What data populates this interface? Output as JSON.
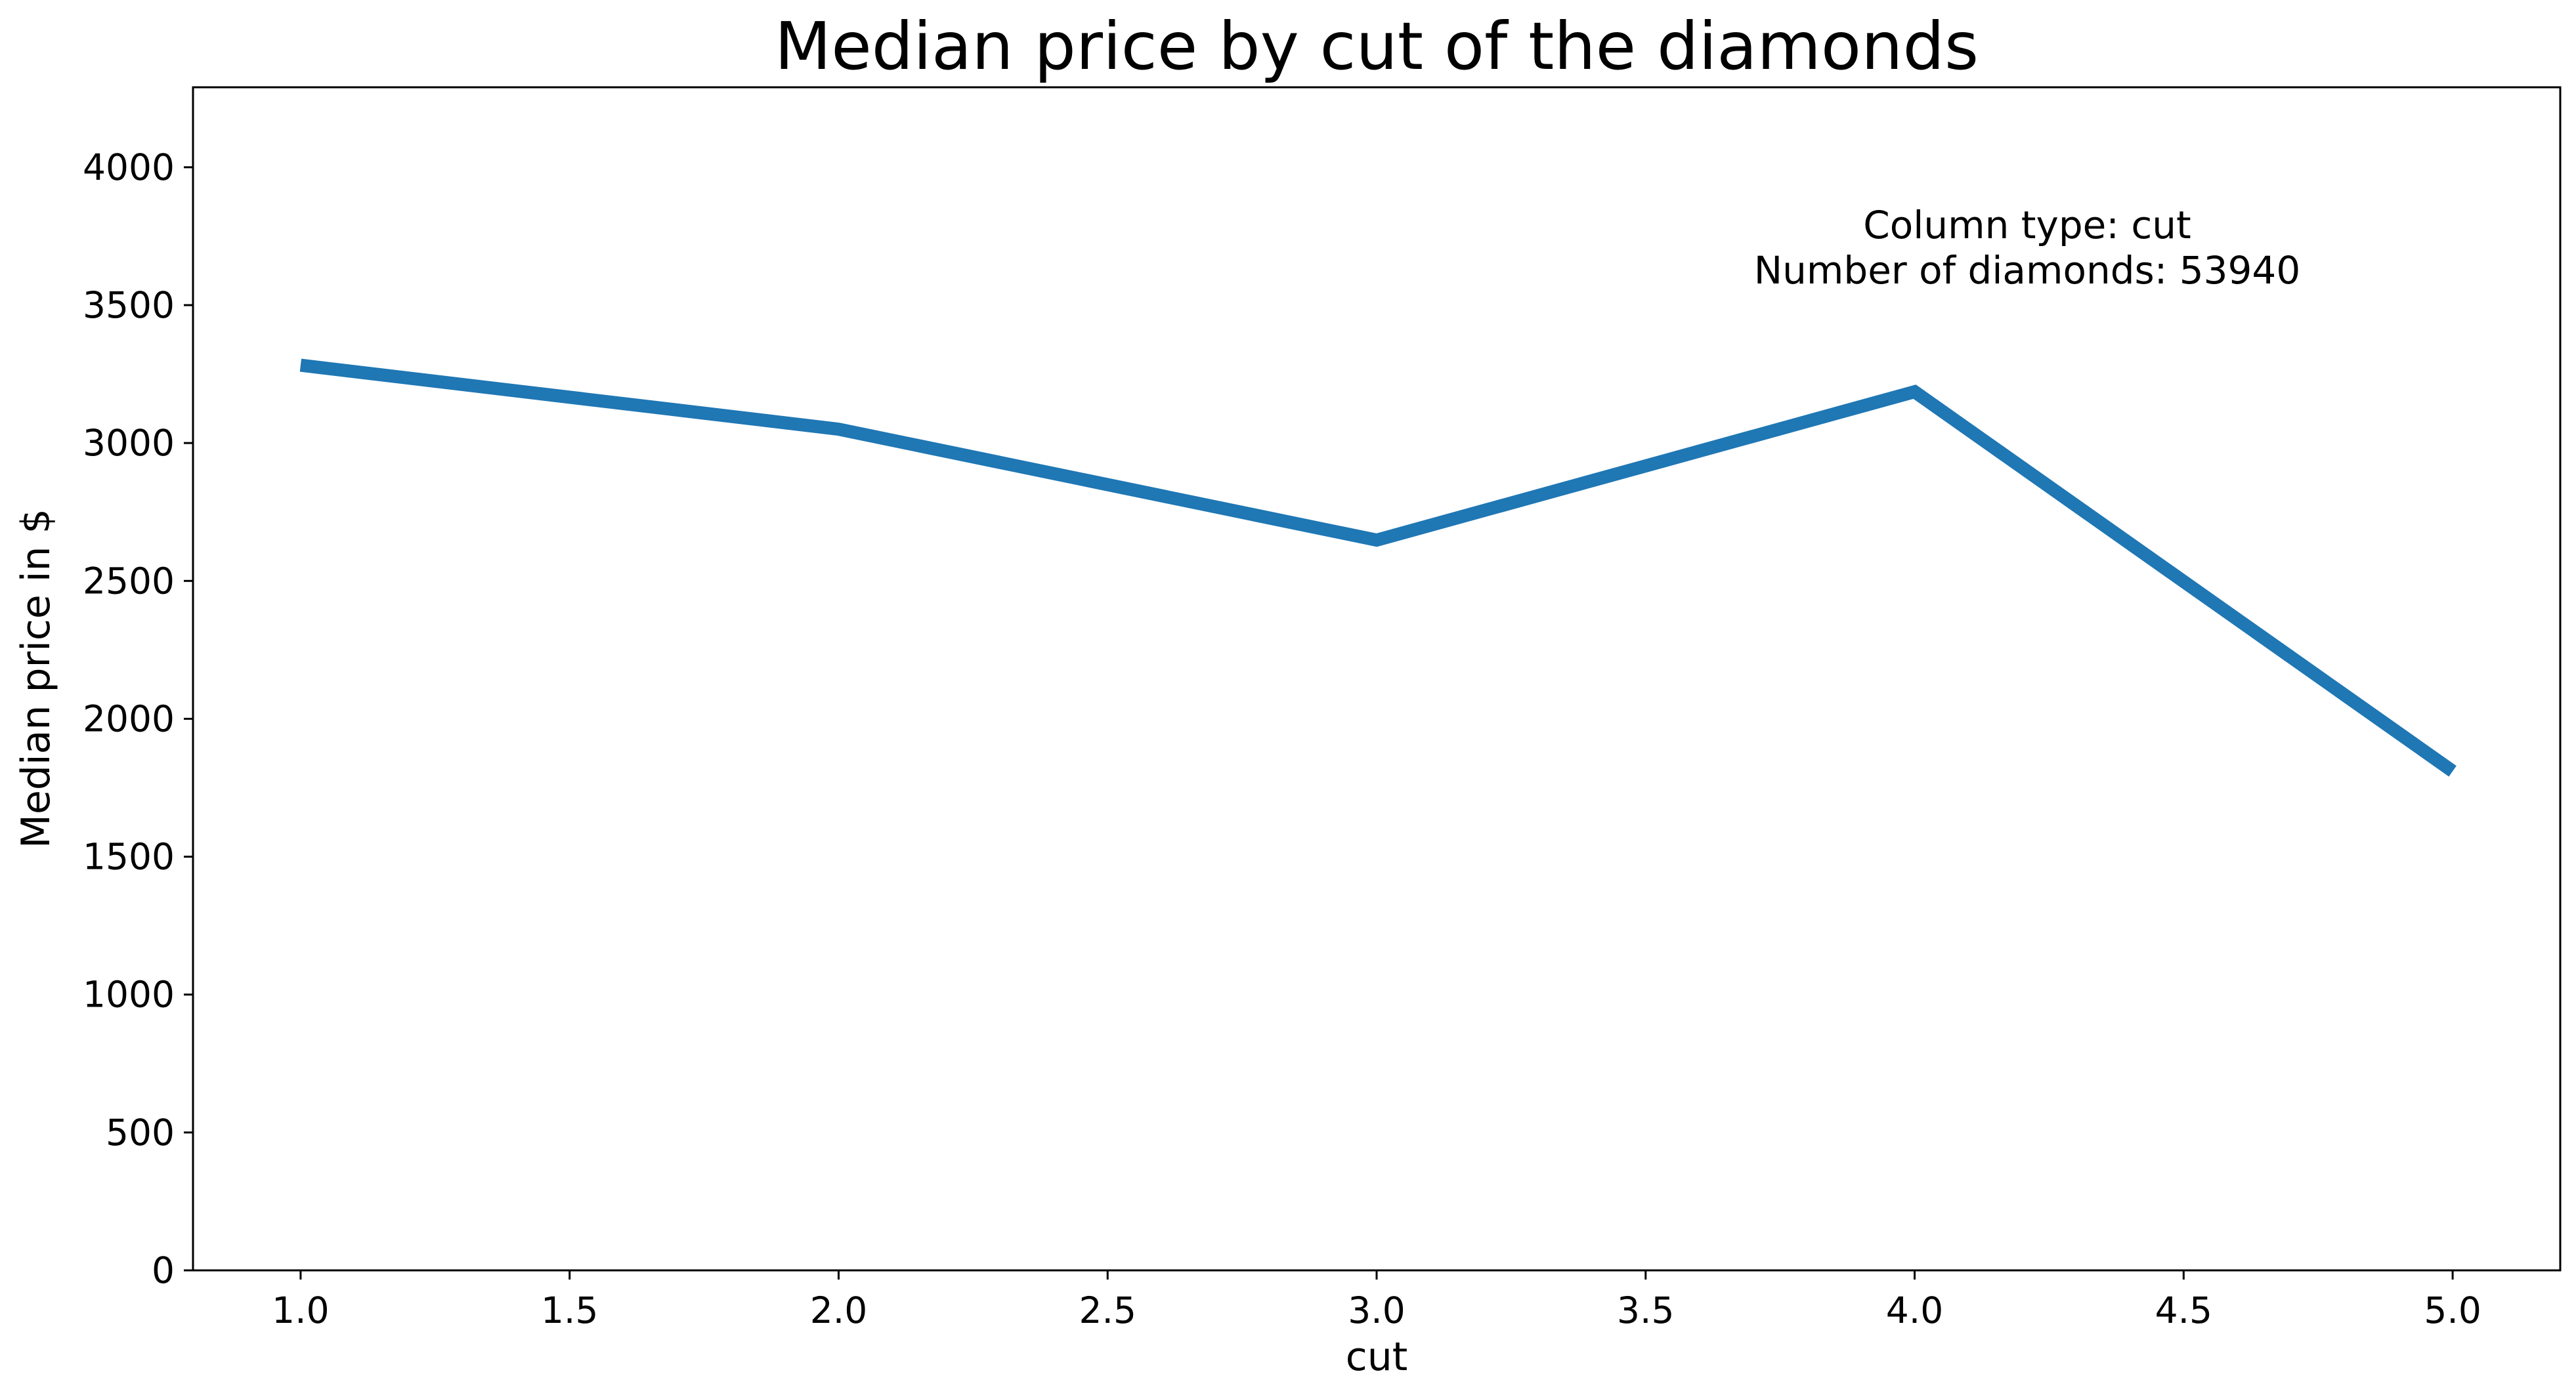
{
  "chart_data": {
    "type": "line",
    "title": "Median price by cut of the diamonds",
    "xlabel": "cut",
    "ylabel": "Median price in $",
    "xlim": [
      0.8,
      5.2
    ],
    "ylim": [
      0,
      4290
    ],
    "x_ticks": [
      "1.0",
      "1.5",
      "2.0",
      "2.5",
      "3.0",
      "3.5",
      "4.0",
      "4.5",
      "5.0"
    ],
    "y_ticks": [
      "0",
      "500",
      "1000",
      "1500",
      "2000",
      "2500",
      "3000",
      "3500",
      "4000"
    ],
    "grid": false,
    "series": [
      {
        "x": [
          1.0,
          2.0,
          3.0,
          4.0,
          5.0
        ],
        "values": [
          3282,
          3050,
          2648,
          3186,
          1810
        ],
        "color": "#1f77b4"
      }
    ],
    "annotation": {
      "line1": "Column type: cut",
      "line2": "Number of diamonds: 53940"
    }
  }
}
